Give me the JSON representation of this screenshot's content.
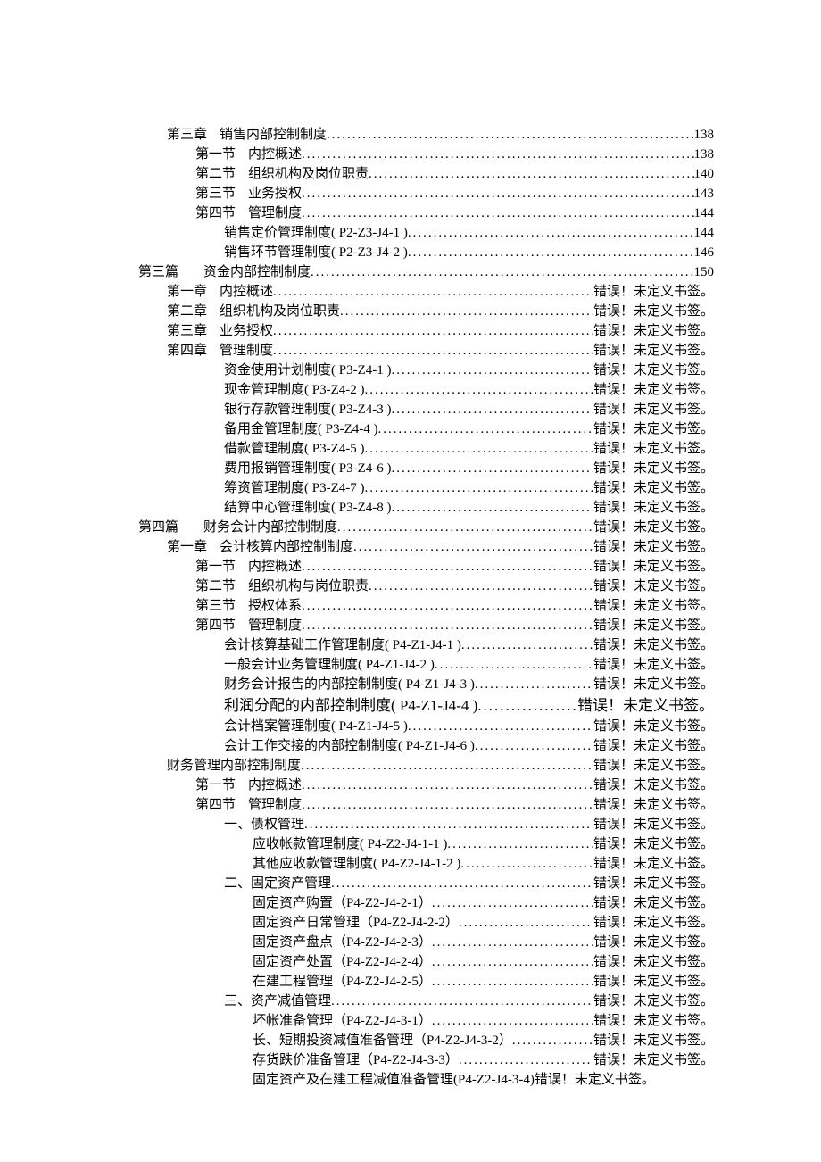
{
  "err": "错误！未定义书签。",
  "entries": [
    {
      "indent": 1,
      "label": "第三章",
      "title": "销售内部控制制度",
      "page": "138",
      "spaced": true
    },
    {
      "indent": 2,
      "label": "第一节",
      "title": "内控概述",
      "page": "138",
      "spaced": true
    },
    {
      "indent": 2,
      "label": "第二节",
      "title": "组织机构及岗位职责",
      "page": "140",
      "spaced": true
    },
    {
      "indent": 2,
      "label": "第三节",
      "title": "业务授权",
      "page": "143",
      "spaced": true
    },
    {
      "indent": 2,
      "label": "第四节",
      "title": "管理制度",
      "page": "144",
      "spaced": true
    },
    {
      "indent": 3,
      "label": "",
      "title": "销售定价管理制度( P2-Z3-J4-1 )",
      "page": "144"
    },
    {
      "indent": 3,
      "label": "",
      "title": "销售环节管理制度( P2-Z3-J4-2 )",
      "page": "146"
    },
    {
      "indent": 0,
      "label": "第三篇",
      "title": "资金内部控制制度",
      "page": "150",
      "spaced": true,
      "gap": true
    },
    {
      "indent": 1,
      "label": "第一章",
      "title": "内控概述",
      "err": true,
      "spaced": true
    },
    {
      "indent": 1,
      "label": "第二章",
      "title": "组织机构及岗位职责",
      "err": true,
      "spaced": true
    },
    {
      "indent": 1,
      "label": "第三章",
      "title": "业务授权",
      "err": true,
      "spaced": true
    },
    {
      "indent": 1,
      "label": "第四章",
      "title": "管理制度",
      "err": true,
      "spaced": true
    },
    {
      "indent": 3,
      "label": "",
      "title": "资金使用计划制度( P3-Z4-1 )",
      "err": true
    },
    {
      "indent": 3,
      "label": "",
      "title": "现金管理制度( P3-Z4-2 )",
      "err": true
    },
    {
      "indent": 3,
      "label": "",
      "title": "银行存款管理制度( P3-Z4-3 )",
      "err": true
    },
    {
      "indent": 3,
      "label": "",
      "title": "备用金管理制度( P3-Z4-4 )",
      "err": true
    },
    {
      "indent": 3,
      "label": "",
      "title": "借款管理制度( P3-Z4-5 )",
      "err": true
    },
    {
      "indent": 3,
      "label": "",
      "title": "费用报销管理制度( P3-Z4-6 )",
      "err": true
    },
    {
      "indent": 3,
      "label": "",
      "title": "筹资管理制度( P3-Z4-7 )",
      "err": true
    },
    {
      "indent": 3,
      "label": "",
      "title": "结算中心管理制度( P3-Z4-8 )",
      "err": true
    },
    {
      "indent": 0,
      "label": "第四篇",
      "title": "财务会计内部控制制度",
      "err": true,
      "spaced": true,
      "gap": true
    },
    {
      "indent": 1,
      "label": "第一章",
      "title": "会计核算内部控制制度",
      "err": true,
      "spaced": true
    },
    {
      "indent": 2,
      "label": "第一节",
      "title": "内控概述",
      "err": true,
      "spaced": true
    },
    {
      "indent": 2,
      "label": "第二节",
      "title": "组织机构与岗位职责",
      "err": true,
      "spaced": true
    },
    {
      "indent": 2,
      "label": "第三节",
      "title": "授权体系",
      "err": true,
      "spaced": true
    },
    {
      "indent": 2,
      "label": "第四节",
      "title": "管理制度",
      "err": true,
      "spaced": true
    },
    {
      "indent": 3,
      "label": "",
      "title": "会计核算基础工作管理制度( P4-Z1-J4-1 )",
      "err": true
    },
    {
      "indent": 3,
      "label": "",
      "title": "一般会计业务管理制度( P4-Z1-J4-2 )",
      "err": true
    },
    {
      "indent": 3,
      "label": "",
      "title": "财务会计报告的内部控制制度( P4-Z1-J4-3 )",
      "err": true
    },
    {
      "indent": 3,
      "label": "",
      "title": "利润分配的内部控制制度( P4-Z1-J4-4 )",
      "err": true,
      "large": true
    },
    {
      "indent": 3,
      "label": "",
      "title": "会计档案管理制度( P4-Z1-J4-5 )",
      "err": true
    },
    {
      "indent": 3,
      "label": "",
      "title": "会计工作交接的内部控制制度( P4-Z1-J4-6 )",
      "err": true
    },
    {
      "indent": "2b",
      "label": "",
      "title": "财务管理内部控制制度",
      "err": true
    },
    {
      "indent": 2,
      "label": "第一节",
      "title": "内控概述",
      "err": true,
      "spaced": true
    },
    {
      "indent": 2,
      "label": "第四节",
      "title": "管理制度",
      "err": true,
      "spaced": true
    },
    {
      "indent": 3,
      "label": "一、",
      "title": "债权管理",
      "err": true
    },
    {
      "indent": 4,
      "label": "",
      "title": "应收帐款管理制度( P4-Z2-J4-1-1 )",
      "err": true
    },
    {
      "indent": 4,
      "label": "",
      "title": "其他应收款管理制度( P4-Z2-J4-1-2 )",
      "err": true
    },
    {
      "indent": 3,
      "label": "二、",
      "title": "固定资产管理",
      "err": true
    },
    {
      "indent": 4,
      "label": "",
      "title": "固定资产购置（P4-Z2-J4-2-1）",
      "err": true
    },
    {
      "indent": 4,
      "label": "",
      "title": "固定资产日常管理（P4-Z2-J4-2-2）",
      "err": true
    },
    {
      "indent": 4,
      "label": "",
      "title": "固定资产盘点（P4-Z2-J4-2-3）",
      "err": true
    },
    {
      "indent": 4,
      "label": "",
      "title": "固定资产处置（P4-Z2-J4-2-4）",
      "err": true
    },
    {
      "indent": 4,
      "label": "",
      "title": "在建工程管理（P4-Z2-J4-2-5）",
      "err": true
    },
    {
      "indent": 3,
      "label": "三、",
      "title": "资产减值管理",
      "err": true
    },
    {
      "indent": 4,
      "label": "",
      "title": "坏帐准备管理（P4-Z2-J4-3-1）",
      "err": true
    },
    {
      "indent": 4,
      "label": "",
      "title": "长、短期投资减值准备管理（P4-Z2-J4-3-2）",
      "err": true
    },
    {
      "indent": 4,
      "label": "",
      "title": "存货跌价准备管理（P4-Z2-J4-3-3）",
      "err": true
    },
    {
      "indent": 4,
      "label": "",
      "title": "固定资产及在建工程减值准备管理(P4-Z2-J4-3-4)",
      "err": true,
      "nodots": true
    }
  ]
}
